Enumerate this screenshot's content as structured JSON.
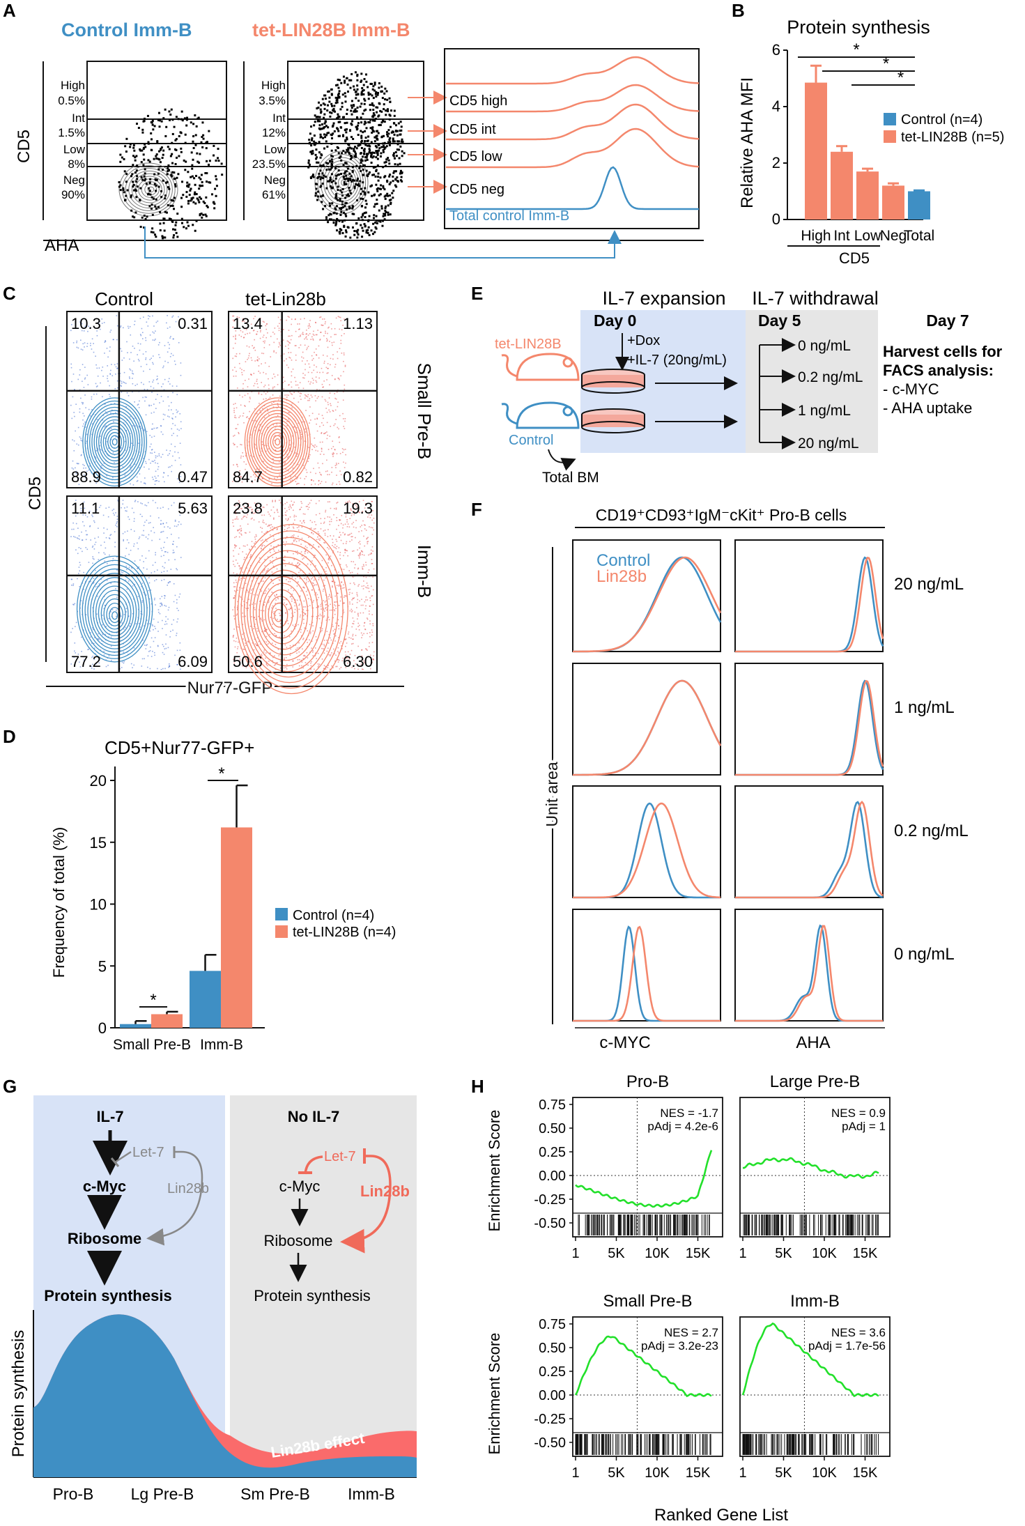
{
  "colors": {
    "control": "#3f8fc4",
    "lin": "#f4876c",
    "blue_bg": "#d8e3f7",
    "gray_bg": "#e6e6e6",
    "green": "#22e02a",
    "red_arrow": "#f06a5a"
  },
  "panelA": {
    "letter": "A",
    "title_control": "Control Imm-B",
    "title_lin": "tet-LIN28B Imm-B",
    "ylabel": "CD5",
    "xlabel": "AHA",
    "gates_control": [
      "High",
      "0.5%",
      "Int",
      "1.5%",
      "Low",
      "8%",
      "Neg",
      "90%"
    ],
    "gates_lin": [
      "High",
      "3.5%",
      "Int",
      "12%",
      "Low",
      "23.5%",
      "Neg",
      "61%"
    ],
    "hist_labels": [
      "CD5 high",
      "CD5 int",
      "CD5 low",
      "CD5 neg",
      "Total control Imm-B"
    ]
  },
  "panelB": {
    "letter": "B",
    "title": "Protein synthesis",
    "ylabel": "Relative AHA MFI",
    "xlabel": "CD5",
    "sig": [
      "*",
      "*",
      "*"
    ],
    "legend": [
      "Control (n=4)",
      "tet-LIN28B (n=5)"
    ]
  },
  "panelC": {
    "letter": "C",
    "col1": "Control",
    "col2": "tet-Lin28b",
    "row1": "Small Pre-B",
    "row2": "Imm-B",
    "ylabel": "CD5",
    "xlabel": "Nur77-GFP",
    "quads": [
      [
        "10.3",
        "0.31",
        "88.9",
        "0.47"
      ],
      [
        "13.4",
        "1.13",
        "84.7",
        "0.82"
      ],
      [
        "11.1",
        "5.63",
        "77.2",
        "6.09"
      ],
      [
        "23.8",
        "19.3",
        "50.6",
        "6.30"
      ]
    ]
  },
  "panelD": {
    "letter": "D",
    "title": "CD5+Nur77-GFP+",
    "ylabel": "Frequency of total (%)",
    "sig": [
      "*",
      "*"
    ],
    "legend": [
      "Control (n=4)",
      "tet-LIN28B (n=4)"
    ]
  },
  "panelE": {
    "letter": "E",
    "h1": "IL-7 expansion",
    "h2": "IL-7 withdrawal",
    "day0": "Day 0",
    "day5": "Day 5",
    "day7": "Day 7",
    "dox": "+Dox",
    "il7": "+IL-7 (20ng/mL)",
    "mouse1": "tet-LIN28B",
    "mouse2": "Control",
    "bm": "Total BM",
    "conc": [
      "0 ng/mL",
      "0.2 ng/mL",
      "1 ng/mL",
      "20 ng/mL"
    ],
    "harvest": [
      "Harvest cells for",
      "FACS analysis:",
      "- c-MYC",
      "- AHA uptake"
    ]
  },
  "panelF": {
    "letter": "F",
    "title": "CD19⁺CD93⁺IgM⁻cKit⁺ Pro-B cells",
    "legend": [
      "Control",
      "Lin28b"
    ],
    "ylabel": "Unit area",
    "rows": [
      "20 ng/mL",
      "1 ng/mL",
      "0.2 ng/mL",
      "0 ng/mL"
    ],
    "xlabels": [
      "c-MYC",
      "AHA"
    ]
  },
  "panelG": {
    "letter": "G",
    "left": {
      "il7": "IL-7",
      "let7": "Let-7",
      "cmyc": "c-Myc",
      "lin": "Lin28b",
      "ribo": "Ribosome",
      "ps": "Protein synthesis"
    },
    "right": {
      "il7": "No IL-7",
      "let7": "Let-7",
      "cmyc": "c-Myc",
      "lin": "Lin28b",
      "ribo": "Ribosome",
      "ps": "Protein synthesis"
    },
    "ylabel": "Protein synthesis",
    "effect": "Lin28b effect",
    "stages": [
      "Pro-B",
      "Lg Pre-B",
      "Sm Pre-B",
      "Imm-B"
    ]
  },
  "panelH": {
    "letter": "H",
    "ylabel": "Enrichment Score",
    "xlabel": "Ranked Gene List",
    "yticks": [
      "0.75",
      "0.50",
      "0.25",
      "0.00",
      "-0.25",
      "-0.50"
    ],
    "xticks": [
      "1",
      "5K",
      "10K",
      "15K"
    ],
    "plots": [
      {
        "title": "Pro-B",
        "nes": "NES = -1.7",
        "padj": "pAdj = 4.2e-6"
      },
      {
        "title": "Large Pre-B",
        "nes": "NES = 0.9",
        "padj": "pAdj = 1"
      },
      {
        "title": "Small Pre-B",
        "nes": "NES = 2.7",
        "padj": "pAdj = 3.2e-23"
      },
      {
        "title": "Imm-B",
        "nes": "NES = 3.6",
        "padj": "pAdj = 1.7e-56"
      }
    ]
  },
  "chart_data": [
    {
      "type": "bar",
      "id": "B",
      "title": "Protein synthesis",
      "categories": [
        "High",
        "Int",
        "Low",
        "Neg",
        "Total"
      ],
      "series": [
        {
          "name": "tet-LIN28B (n=5)",
          "values": [
            4.85,
            2.4,
            1.7,
            1.2,
            null
          ],
          "err": [
            0.6,
            0.2,
            0.1,
            0.08,
            null
          ]
        },
        {
          "name": "Control (n=4)",
          "values": [
            null,
            null,
            null,
            null,
            1.0
          ],
          "err": [
            null,
            null,
            null,
            null,
            0.03
          ]
        }
      ],
      "ylabel": "Relative AHA MFI",
      "xlabel": "CD5",
      "ylim": [
        0,
        6
      ],
      "yticks": [
        0,
        2,
        4,
        6
      ]
    },
    {
      "type": "bar",
      "id": "D",
      "title": "CD5+Nur77-GFP+",
      "categories": [
        "Small Pre-B",
        "Imm-B"
      ],
      "series": [
        {
          "name": "Control (n=4)",
          "values": [
            0.3,
            4.6
          ],
          "err": [
            0.25,
            1.3
          ]
        },
        {
          "name": "tet-LIN28B (n=4)",
          "values": [
            1.1,
            16.2
          ],
          "err": [
            0.2,
            3.4
          ]
        }
      ],
      "ylabel": "Frequency of total (%)",
      "ylim": [
        0,
        20
      ],
      "yticks": [
        0,
        5,
        10,
        15,
        20
      ]
    }
  ]
}
